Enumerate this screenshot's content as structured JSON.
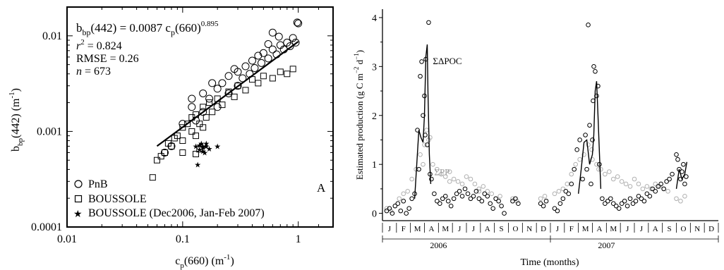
{
  "chart_data": [
    {
      "type": "scatter",
      "panel_label": "A",
      "xscale": "log",
      "yscale": "log",
      "xlim": [
        0.01,
        2
      ],
      "ylim": [
        0.0001,
        0.02
      ],
      "xticks": [
        0.01,
        0.1,
        1
      ],
      "xtick_labels": [
        "0.01",
        "0.1",
        "1"
      ],
      "yticks": [
        0.0001,
        0.001,
        0.01
      ],
      "ytick_labels": [
        "0.0001",
        "0.001",
        "0.01"
      ],
      "xlabel": {
        "base": "c",
        "sub": "p",
        "rest": "(660) (m",
        "sup": "-1",
        "close": ")"
      },
      "ylabel": {
        "base": "b",
        "sub": "bp",
        "rest": "(442) (m",
        "sup": "-1",
        "close": ")"
      },
      "equation": {
        "lhs_base": "b",
        "lhs_sub": "bp",
        "lhs_rest": "(442) =  0.0087 c",
        "rhs_sub": "p",
        "rhs_rest": "(660)",
        "exponent": "0.895"
      },
      "stats": {
        "r2_var": "r",
        "r2_sup": "2",
        "r2_value": " = 0.824",
        "rmse": "RMSE = 0.26",
        "n_var": "n",
        "n_value": " = 673"
      },
      "fit": {
        "coef": 0.0087,
        "exponent": 0.895,
        "x_range": [
          0.06,
          1.0
        ]
      },
      "legend": [
        "PnB",
        "BOUSSOLE",
        "BOUSSOLE (Dec2006, Jan-Feb 2007)"
      ],
      "legend_placement": "bottom-left",
      "series": [
        {
          "name": "PnB",
          "marker": "circle",
          "points": [
            [
              0.07,
              0.0006
            ],
            [
              0.08,
              0.0007
            ],
            [
              0.1,
              0.0012
            ],
            [
              0.12,
              0.0018
            ],
            [
              0.13,
              0.0013
            ],
            [
              0.15,
              0.0016
            ],
            [
              0.15,
              0.0025
            ],
            [
              0.17,
              0.0022
            ],
            [
              0.2,
              0.0018
            ],
            [
              0.2,
              0.0028
            ],
            [
              0.22,
              0.0032
            ],
            [
              0.25,
              0.0025
            ],
            [
              0.25,
              0.0038
            ],
            [
              0.28,
              0.0045
            ],
            [
              0.3,
              0.003
            ],
            [
              0.3,
              0.0042
            ],
            [
              0.33,
              0.0036
            ],
            [
              0.35,
              0.0048
            ],
            [
              0.38,
              0.004
            ],
            [
              0.4,
              0.0055
            ],
            [
              0.42,
              0.0046
            ],
            [
              0.45,
              0.0062
            ],
            [
              0.48,
              0.0052
            ],
            [
              0.5,
              0.0066
            ],
            [
              0.55,
              0.0058
            ],
            [
              0.6,
              0.0072
            ],
            [
              0.65,
              0.0064
            ],
            [
              0.7,
              0.008
            ],
            [
              0.75,
              0.0072
            ],
            [
              0.8,
              0.0085
            ],
            [
              0.85,
              0.0078
            ],
            [
              0.9,
              0.0095
            ],
            [
              0.95,
              0.0085
            ],
            [
              0.55,
              0.0082
            ],
            [
              0.6,
              0.0108
            ],
            [
              0.68,
              0.0098
            ],
            [
              0.98,
              0.0138
            ],
            [
              1.0,
              0.0135
            ],
            [
              0.12,
              0.0022
            ],
            [
              0.18,
              0.0032
            ]
          ]
        },
        {
          "name": "BOUSSOLE",
          "marker": "square",
          "points": [
            [
              0.06,
              0.0005
            ],
            [
              0.065,
              0.00055
            ],
            [
              0.07,
              0.0006
            ],
            [
              0.075,
              0.00075
            ],
            [
              0.08,
              0.0007
            ],
            [
              0.09,
              0.0009
            ],
            [
              0.1,
              0.0008
            ],
            [
              0.1,
              0.0011
            ],
            [
              0.11,
              0.0012
            ],
            [
              0.12,
              0.001
            ],
            [
              0.12,
              0.0014
            ],
            [
              0.13,
              0.0015
            ],
            [
              0.14,
              0.0012
            ],
            [
              0.15,
              0.0018
            ],
            [
              0.16,
              0.0014
            ],
            [
              0.17,
              0.002
            ],
            [
              0.18,
              0.0016
            ],
            [
              0.2,
              0.0022
            ],
            [
              0.22,
              0.0019
            ],
            [
              0.25,
              0.0026
            ],
            [
              0.28,
              0.0023
            ],
            [
              0.3,
              0.003
            ],
            [
              0.35,
              0.0027
            ],
            [
              0.4,
              0.0035
            ],
            [
              0.45,
              0.0032
            ],
            [
              0.5,
              0.0038
            ],
            [
              0.6,
              0.0036
            ],
            [
              0.7,
              0.0042
            ],
            [
              0.8,
              0.004
            ],
            [
              0.9,
              0.0045
            ],
            [
              0.1,
              0.0006
            ],
            [
              0.085,
              0.00085
            ],
            [
              0.13,
              0.0009
            ],
            [
              0.15,
              0.0011
            ],
            [
              0.055,
              0.00033
            ],
            [
              0.13,
              0.00058
            ],
            [
              0.14,
              0.00065
            ]
          ]
        },
        {
          "name": "BOUSSOLE (Dec2006, Jan-Feb 2007)",
          "marker": "star",
          "points": [
            [
              0.13,
              0.0007
            ],
            [
              0.14,
              0.00065
            ],
            [
              0.15,
              0.0007
            ],
            [
              0.15,
              0.00068
            ],
            [
              0.16,
              0.0007
            ],
            [
              0.14,
              0.00072
            ],
            [
              0.155,
              0.0006
            ],
            [
              0.17,
              0.00066
            ],
            [
              0.145,
              0.00075
            ],
            [
              0.2,
              0.0007
            ],
            [
              0.135,
              0.00045
            ],
            [
              0.16,
              0.00075
            ],
            [
              0.15,
              0.00062
            ]
          ]
        }
      ]
    },
    {
      "type": "line",
      "xlabel": "Time (months)",
      "ylabel": {
        "text": "Estimated production (g C  m",
        "sup1": "−2",
        "mid": " d",
        "sup2": "−1",
        "close": ")"
      },
      "xlim": [
        0,
        24
      ],
      "ylim": [
        -0.15,
        4.1
      ],
      "yticks": [
        0,
        1,
        2,
        3,
        4
      ],
      "month_labels": [
        "J",
        "F",
        "M",
        "A",
        "M",
        "J",
        "J",
        "A",
        "S",
        "O",
        "N",
        "D",
        "J",
        "F",
        "M",
        "A",
        "M",
        "J",
        "J",
        "A",
        "S",
        "O",
        "N",
        "D"
      ],
      "year_labels": [
        {
          "text": "2006",
          "center": 4.0
        },
        {
          "text": "2007",
          "center": 16.0
        }
      ],
      "annotations": [
        {
          "text": "ΣΔPOC",
          "x": 3.6,
          "y": 3.05,
          "color": "#000000"
        },
        {
          "text": "ΣPP",
          "x": 3.7,
          "y": 0.78,
          "color": "#999999"
        }
      ],
      "series": [
        {
          "name": "ΣΔPOC",
          "style": "line",
          "color": "#000000",
          "x": [
            2.3,
            2.45,
            2.6,
            2.75,
            2.9,
            3.0,
            3.1,
            3.2,
            3.25,
            3.35,
            3.45
          ],
          "y": [
            0.3,
            1.0,
            1.7,
            1.55,
            1.45,
            2.0,
            3.2,
            3.45,
            2.5,
            1.2,
            0.6
          ]
        },
        {
          "name": "ΣΔPOC",
          "style": "line",
          "color": "#000000",
          "x": [
            14.0,
            14.2,
            14.4,
            14.6,
            14.8,
            15.0,
            15.1,
            15.2,
            15.3,
            15.4,
            15.6
          ],
          "y": [
            0.4,
            0.9,
            1.45,
            1.5,
            1.0,
            1.2,
            1.6,
            2.5,
            2.7,
            2.0,
            0.5
          ]
        },
        {
          "name": "ΣΔPOC",
          "style": "line",
          "color": "#000000",
          "x": [
            21.0,
            21.2,
            21.4,
            21.6,
            21.75
          ],
          "y": [
            0.5,
            0.9,
            0.7,
            0.8,
            1.05
          ]
        },
        {
          "name": "ΣΔPOC",
          "style": "markers",
          "color": "#000000",
          "x": [
            0.3,
            0.5,
            0.7,
            0.9,
            1.1,
            1.3,
            1.5,
            1.7,
            1.9,
            2.1,
            2.3,
            2.5,
            2.6,
            2.7,
            2.8,
            2.9,
            3.0,
            3.05,
            3.1,
            3.2,
            3.3,
            3.4,
            3.5,
            3.7,
            3.9,
            4.1,
            4.3,
            4.5,
            4.7,
            4.9,
            5.1,
            5.3,
            5.5,
            5.7,
            5.9,
            6.1,
            6.3,
            6.5,
            6.7,
            6.9,
            7.1,
            7.3,
            7.5,
            7.7,
            7.9,
            8.1,
            8.3,
            8.5,
            8.7,
            9.3,
            9.5,
            9.7,
            11.3,
            11.5,
            11.7,
            12.3,
            12.5,
            12.7,
            12.9,
            13.1,
            13.3,
            13.5,
            13.7,
            13.9,
            14.1,
            14.3,
            14.5,
            14.6,
            14.7,
            14.8,
            14.9,
            15.0,
            15.05,
            15.1,
            15.2,
            15.3,
            15.4,
            15.5,
            15.7,
            15.9,
            16.1,
            16.3,
            16.5,
            16.7,
            16.9,
            17.1,
            17.3,
            17.5,
            17.7,
            17.9,
            18.1,
            18.3,
            18.5,
            18.7,
            18.9,
            19.1,
            19.3,
            19.5,
            19.7,
            19.9,
            20.1,
            20.3,
            20.5,
            20.7,
            21.0,
            21.1,
            21.2,
            21.3,
            21.4,
            21.5,
            21.6,
            21.7
          ],
          "y": [
            0.05,
            0.1,
            0.0,
            0.15,
            0.2,
            0.05,
            0.25,
            0.0,
            0.1,
            0.3,
            0.4,
            1.7,
            0.9,
            2.8,
            3.1,
            2.0,
            2.4,
            1.6,
            3.15,
            1.4,
            3.9,
            0.8,
            0.7,
            0.4,
            0.25,
            0.2,
            0.3,
            0.35,
            0.25,
            0.15,
            0.3,
            0.4,
            0.45,
            0.35,
            0.5,
            0.4,
            0.3,
            0.35,
            0.45,
            0.3,
            0.25,
            0.4,
            0.35,
            0.2,
            0.1,
            0.3,
            0.25,
            0.15,
            0.0,
            0.25,
            0.3,
            0.2,
            0.2,
            0.15,
            0.25,
            0.1,
            0.05,
            0.2,
            0.3,
            0.45,
            0.4,
            0.6,
            0.9,
            1.3,
            1.5,
            0.7,
            1.6,
            0.9,
            3.85,
            1.8,
            0.6,
            1.5,
            2.3,
            3.0,
            2.9,
            2.4,
            2.6,
            1.0,
            0.3,
            0.2,
            0.25,
            0.3,
            0.2,
            0.15,
            0.1,
            0.2,
            0.25,
            0.15,
            0.3,
            0.2,
            0.25,
            0.35,
            0.3,
            0.25,
            0.4,
            0.35,
            0.5,
            0.45,
            0.55,
            0.6,
            0.5,
            0.65,
            0.7,
            0.8,
            1.2,
            1.1,
            0.9,
            0.7,
            0.85,
            1.0,
            0.6,
            0.75
          ]
        },
        {
          "name": "ΣPP",
          "style": "markers",
          "color": "#b0b0b0",
          "x": [
            0.3,
            0.6,
            0.9,
            1.2,
            1.5,
            1.8,
            2.1,
            2.4,
            2.7,
            3.0,
            3.3,
            3.6,
            3.9,
            4.2,
            4.5,
            4.8,
            5.1,
            5.4,
            5.7,
            6.0,
            6.3,
            6.6,
            6.9,
            7.2,
            7.5,
            7.8,
            8.1,
            8.4,
            9.3,
            9.6,
            11.3,
            11.6,
            12.3,
            12.6,
            12.9,
            13.2,
            13.5,
            13.8,
            14.1,
            14.4,
            14.7,
            15.0,
            15.3,
            15.6,
            15.9,
            16.2,
            16.5,
            16.8,
            17.1,
            17.4,
            17.7,
            18.0,
            18.3,
            18.6,
            18.9,
            19.2,
            19.5,
            19.8,
            20.1,
            20.4,
            21.0,
            21.3,
            21.6,
            3.15,
            3.4,
            14.95,
            15.45,
            2.9,
            4.8,
            6.9
          ],
          "y": [
            0.1,
            0.05,
            0.15,
            0.3,
            0.4,
            0.45,
            0.7,
            0.9,
            1.2,
            1.4,
            1.5,
            1.0,
            0.9,
            0.8,
            0.75,
            0.85,
            0.7,
            0.65,
            0.6,
            0.75,
            0.7,
            0.6,
            0.5,
            0.55,
            0.45,
            0.4,
            0.3,
            0.35,
            0.3,
            0.25,
            0.3,
            0.35,
            0.4,
            0.45,
            0.5,
            0.6,
            0.8,
            1.0,
            1.1,
            1.2,
            1.4,
            1.1,
            1.0,
            0.9,
            0.8,
            0.85,
            0.7,
            0.75,
            0.65,
            0.6,
            0.55,
            0.7,
            0.6,
            0.5,
            0.55,
            0.5,
            0.6,
            0.55,
            0.5,
            0.45,
            0.3,
            0.25,
            0.35,
            1.7,
            1.55,
            1.3,
            0.9,
            1.0,
            0.65,
            0.45
          ]
        }
      ]
    }
  ]
}
